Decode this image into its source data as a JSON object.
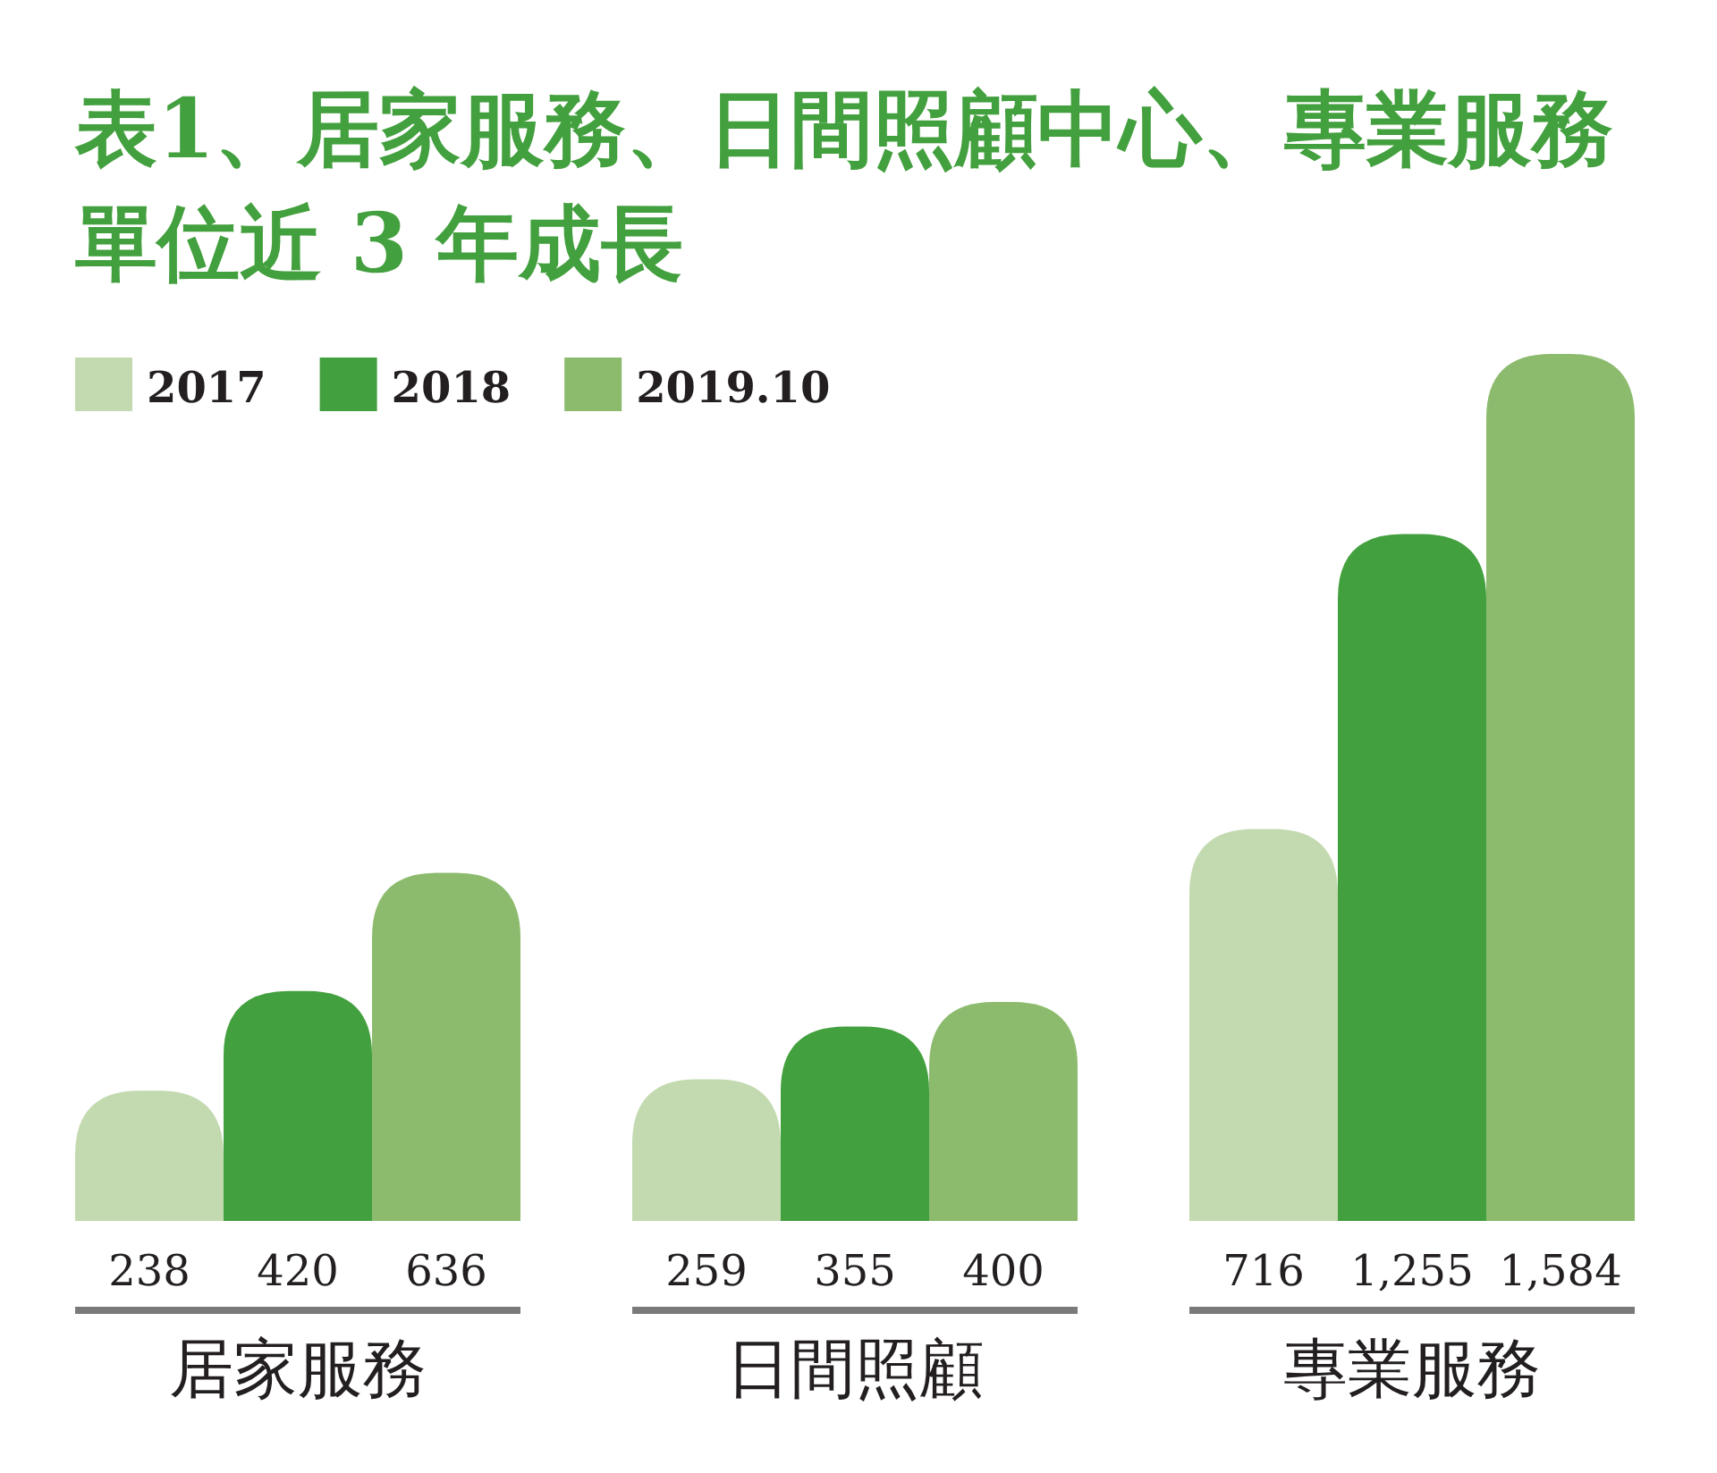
{
  "chart_data": {
    "type": "bar",
    "title": "表1、居家服務、日間照顧中心、專業服務單位近 3 年成長",
    "categories": [
      "居家服務",
      "日間照顧",
      "專業服務"
    ],
    "series": [
      {
        "name": "2017",
        "color": "#c3dab0",
        "values": [
          238,
          259,
          716
        ],
        "value_labels": [
          "238",
          "259",
          "716"
        ]
      },
      {
        "name": "2018",
        "color": "#43a03e",
        "values": [
          420,
          355,
          1255
        ],
        "value_labels": [
          "420",
          "355",
          "1,255"
        ]
      },
      {
        "name": "2019.10",
        "color": "#8dbb6e",
        "values": [
          636,
          400,
          1584
        ],
        "value_labels": [
          "636",
          "400",
          "1,584"
        ]
      }
    ],
    "legend": "top left"
  }
}
